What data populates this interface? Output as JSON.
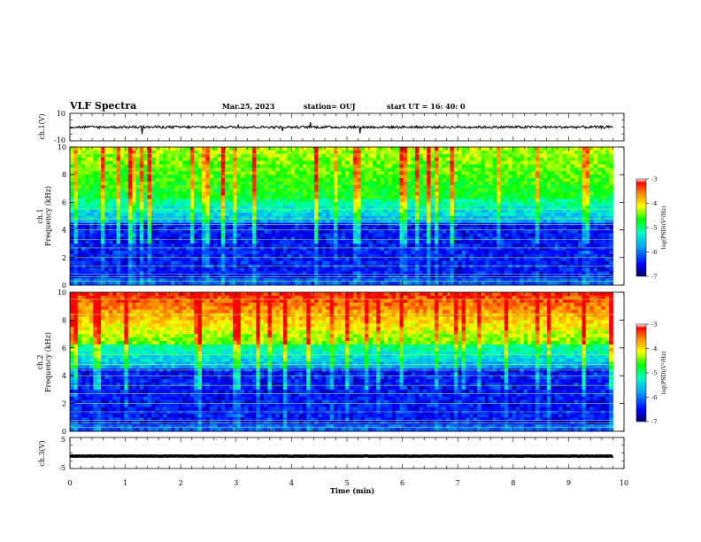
{
  "header": {
    "title": "VLF Spectra",
    "date": "Mar.25, 2023",
    "station": "station= OUJ",
    "start": "start  UT =   16: 40: 0"
  },
  "chart_data": [
    {
      "type": "line",
      "name": "ch1-waveform",
      "ylabel": "ch.1(V)",
      "ylim": [
        -10,
        10
      ],
      "yticks": [
        "10",
        "-10"
      ],
      "xlim": [
        0,
        10
      ],
      "data_until_min": 9.8,
      "baseline_v": 0
    },
    {
      "type": "heatmap",
      "name": "ch1-spectrogram",
      "ylabel": "Frequency (kHz)",
      "channel_label": "ch.1",
      "ylim": [
        0,
        10
      ],
      "yticks": [
        "0",
        "2",
        "4",
        "6",
        "8",
        "10"
      ],
      "xlim": [
        0,
        10
      ],
      "data_until_min": 9.8,
      "colorbar": {
        "label": "log(PSD)(V²/Hz)",
        "range": [
          -7,
          -3
        ],
        "ticks": [
          "-3",
          "-4",
          "-5",
          "-6",
          "-7"
        ]
      }
    },
    {
      "type": "heatmap",
      "name": "ch2-spectrogram",
      "ylabel": "Frequency (kHz)",
      "channel_label": "ch.2",
      "ylim": [
        0,
        10
      ],
      "yticks": [
        "0",
        "2",
        "4",
        "6",
        "8",
        "10"
      ],
      "xlim": [
        0,
        10
      ],
      "data_until_min": 9.8,
      "colorbar": {
        "label": "log(PSD)(V²/Hz)",
        "range": [
          -7,
          -3
        ],
        "ticks": [
          "-3",
          "-4",
          "-5",
          "-6",
          "-7"
        ]
      }
    },
    {
      "type": "line",
      "name": "ch3-waveform",
      "ylabel": "ch.3(V)",
      "ylim": [
        -5,
        5
      ],
      "yticks": [
        "5",
        "-5"
      ],
      "xlim": [
        0,
        10
      ],
      "data_until_min": 9.8,
      "baseline_v": -1
    }
  ],
  "xaxis": {
    "label": "Time  (min)",
    "ticks": [
      "0",
      "1",
      "2",
      "3",
      "4",
      "5",
      "6",
      "7",
      "8",
      "9",
      "10"
    ]
  },
  "colors": {
    "low": "#00007f",
    "mid": "#00ff80",
    "high": "#ff0000"
  }
}
